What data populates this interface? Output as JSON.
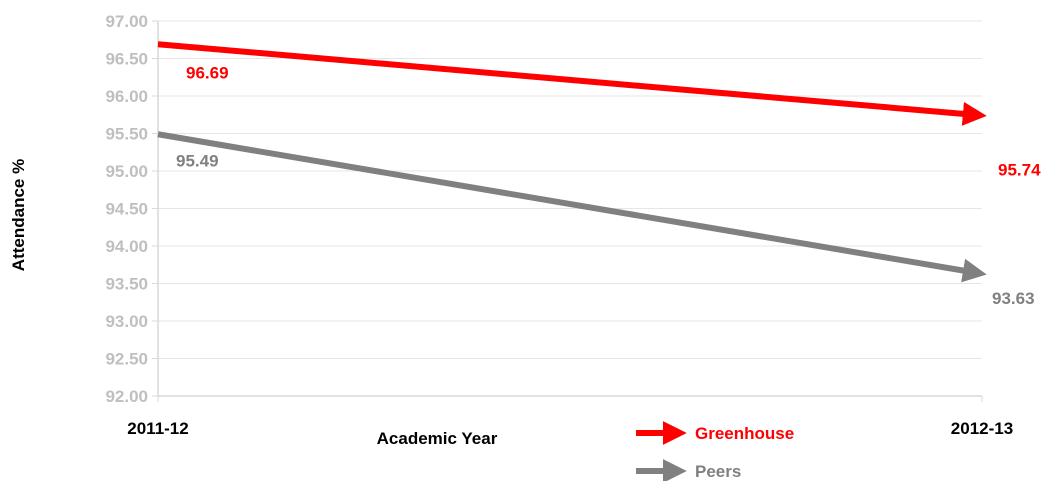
{
  "chart_data": {
    "type": "line",
    "title": "",
    "xlabel": "Academic Year",
    "ylabel": "Attendance %",
    "categories": [
      "2011-12",
      "2012-13"
    ],
    "y_ticks": [
      "92.00",
      "92.50",
      "93.00",
      "93.50",
      "94.00",
      "94.50",
      "95.00",
      "95.50",
      "96.00",
      "96.50",
      "97.00"
    ],
    "ylim": [
      92.0,
      97.0
    ],
    "grid": true,
    "legend_position": "bottom",
    "series": [
      {
        "name": "Greenhouse",
        "values": [
          96.69,
          95.74
        ],
        "value_labels": [
          "96.69",
          "95.74"
        ],
        "color": "#ff0000"
      },
      {
        "name": "Peers",
        "values": [
          95.49,
          93.63
        ],
        "value_labels": [
          "95.49",
          "93.63"
        ],
        "color": "#808080"
      }
    ],
    "colors": {
      "tick_label": "#bfbfbf",
      "grid": "#e6e6e6",
      "axis": "#d9d9d9",
      "text": "#000000"
    }
  }
}
